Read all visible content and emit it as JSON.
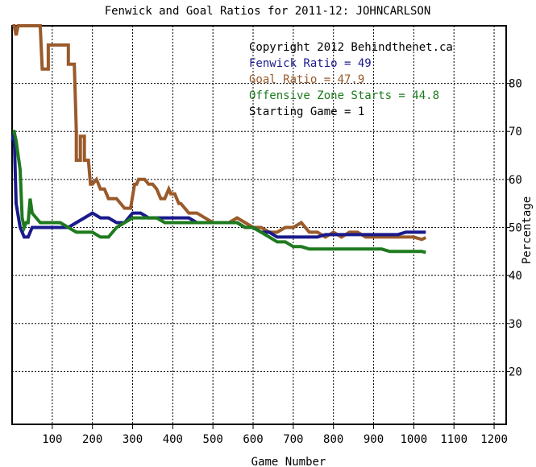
{
  "chart_data": {
    "type": "line",
    "title": "Fenwick and Goal Ratios for 2011-12: JOHNCARLSON",
    "xlabel": "Game Number",
    "ylabel": "Percentage",
    "xlim": [
      0,
      1230
    ],
    "ylim": [
      9,
      92
    ],
    "xticks": [
      100,
      200,
      300,
      400,
      500,
      600,
      700,
      800,
      900,
      1000,
      1100,
      1200
    ],
    "yticks": [
      20,
      30,
      40,
      50,
      60,
      70,
      80
    ],
    "grid": true,
    "annotations": [
      "Copyright 2012 Behindthenet.ca",
      "Fenwick Ratio = 49",
      "Goal Ratio = 47.9",
      "Offensive Zone Starts = 44.8",
      "Starting Game = 1"
    ],
    "annotation_colors": [
      "#000000",
      "#1a1a8c",
      "#9a5a2a",
      "#1e7a1e",
      "#000000"
    ],
    "series": [
      {
        "name": "Goal Ratio",
        "color": "#9a5a2a",
        "x": [
          1,
          5,
          10,
          15,
          20,
          70,
          75,
          90,
          90,
          110,
          110,
          125,
          140,
          140,
          155,
          160,
          160,
          170,
          170,
          180,
          180,
          190,
          195,
          200,
          210,
          220,
          230,
          240,
          260,
          280,
          295,
          305,
          310,
          315,
          320,
          330,
          340,
          350,
          360,
          370,
          380,
          390,
          395,
          400,
          405,
          415,
          420,
          440,
          460,
          480,
          500,
          520,
          540,
          560,
          580,
          600,
          620,
          640,
          660,
          680,
          700,
          720,
          740,
          760,
          780,
          800,
          820,
          840,
          860,
          880,
          900,
          920,
          940,
          960,
          980,
          1000,
          1020,
          1030
        ],
        "values": [
          92,
          100,
          90,
          95,
          100,
          100,
          83,
          83,
          88,
          88,
          88,
          88,
          88,
          84,
          84,
          70,
          64,
          64,
          69,
          69,
          64,
          64,
          59,
          59,
          60,
          58,
          58,
          56,
          56,
          54,
          54,
          59,
          59,
          60,
          60,
          60,
          59,
          59,
          58,
          56,
          56,
          58,
          57,
          57,
          57,
          55,
          55,
          53,
          53,
          52,
          51,
          51,
          51,
          52,
          51,
          50,
          50,
          49,
          49,
          50,
          50,
          51,
          49,
          49,
          48,
          49,
          48,
          49,
          49,
          48,
          48,
          48,
          48,
          48,
          48,
          48,
          47.5,
          47.9
        ]
      },
      {
        "name": "Fenwick Ratio",
        "color": "#1a1a8c",
        "x": [
          1,
          5,
          10,
          20,
          30,
          40,
          50,
          60,
          80,
          100,
          120,
          140,
          160,
          180,
          200,
          220,
          240,
          260,
          280,
          300,
          320,
          340,
          360,
          380,
          400,
          420,
          440,
          460,
          480,
          500,
          520,
          540,
          560,
          580,
          600,
          620,
          640,
          660,
          680,
          700,
          720,
          740,
          760,
          780,
          800,
          820,
          840,
          860,
          880,
          900,
          920,
          940,
          960,
          980,
          1000,
          1020,
          1030
        ],
        "values": [
          68,
          70,
          55,
          50,
          48,
          48,
          50,
          50,
          50,
          50,
          50,
          50,
          51,
          52,
          53,
          52,
          52,
          51,
          51,
          53,
          53,
          52,
          52,
          52,
          52,
          52,
          52,
          51,
          51,
          51,
          51,
          51,
          51,
          50,
          50,
          49,
          49,
          48,
          48,
          48,
          48,
          48,
          48,
          48.5,
          48.5,
          48.5,
          48.5,
          48.5,
          48.5,
          48.5,
          48.5,
          48.5,
          48.5,
          49,
          49,
          49,
          49
        ]
      },
      {
        "name": "Offensive Zone Starts",
        "color": "#1e7a1e",
        "x": [
          1,
          5,
          10,
          20,
          25,
          30,
          35,
          40,
          45,
          50,
          60,
          70,
          80,
          100,
          120,
          140,
          160,
          180,
          200,
          220,
          240,
          260,
          280,
          300,
          320,
          340,
          360,
          380,
          400,
          420,
          440,
          460,
          480,
          500,
          520,
          540,
          560,
          580,
          600,
          620,
          640,
          660,
          680,
          700,
          720,
          740,
          760,
          780,
          800,
          820,
          840,
          860,
          880,
          900,
          920,
          940,
          960,
          980,
          1000,
          1020,
          1030
        ],
        "values": [
          70,
          70,
          68,
          62,
          52,
          50,
          51,
          51,
          56,
          53,
          52,
          51,
          51,
          51,
          51,
          50,
          49,
          49,
          49,
          48,
          48,
          50,
          51,
          52,
          52,
          52,
          52,
          51,
          51,
          51,
          51,
          51,
          51,
          51,
          51,
          51,
          51,
          50,
          50,
          49,
          48,
          47,
          47,
          46,
          46,
          45.5,
          45.5,
          45.5,
          45.5,
          45.5,
          45.5,
          45.5,
          45.5,
          45.5,
          45.5,
          45,
          45,
          45,
          45,
          45,
          44.8
        ]
      }
    ]
  }
}
